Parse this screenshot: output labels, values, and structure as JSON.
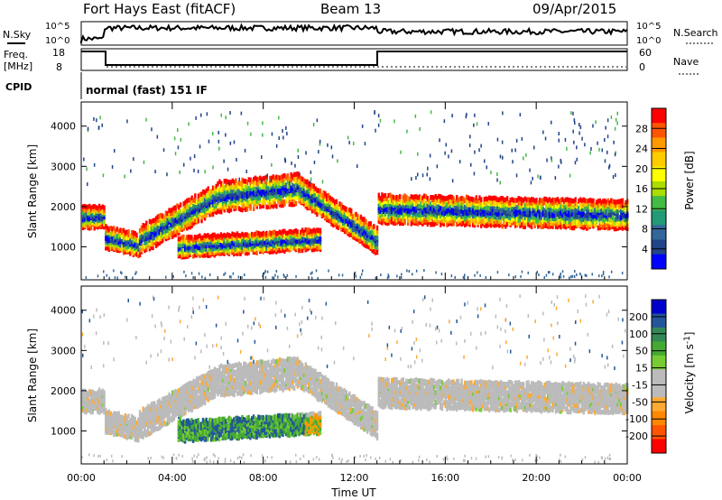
{
  "header": {
    "station": "Fort Hays East (fitACF)",
    "beam": "Beam 13",
    "date": "09/Apr/2015"
  },
  "strips": {
    "nsky_label": "N.Sky",
    "nsky_top": "10^5",
    "nsky_bot": "10^0",
    "nsearch_label": "N.Search",
    "nsearch_top": "10^5",
    "nsearch_bot": "10^0",
    "freq_label": "Freq.",
    "freq_unit": "[MHz]",
    "freq_top": "18",
    "freq_bot": "8",
    "nave_label": "Nave",
    "nave_top": "60",
    "nave_bot": "0",
    "cpid_label": "CPID",
    "cpid_text": "normal (fast) 151 IF"
  },
  "chart_data": [
    {
      "type": "heatmap",
      "name": "power-panel",
      "ylabel": "Slant Range [km]",
      "yticks": [
        "1000",
        "2000",
        "3000",
        "4000"
      ],
      "colorbar_label": "Power [dB]",
      "colorbar_ticks": [
        "28",
        "24",
        "20",
        "16",
        "12",
        "8",
        "4"
      ],
      "colorbar_colors": [
        "#ff0000",
        "#ff5500",
        "#ff9900",
        "#ffcc00",
        "#ffff00",
        "#aadd00",
        "#44bb44",
        "#229977",
        "#336699",
        "#224488",
        "#0000ff"
      ],
      "x_range_hours": [
        0,
        24
      ],
      "y_range_km": [
        180,
        4600
      ],
      "echo_bands": [
        {
          "t_start": 0.0,
          "t_end": 1.0,
          "center_start": 1800,
          "center_end": 1800,
          "width": 500
        },
        {
          "t_start": 1.0,
          "t_end": 2.5,
          "center_start": 1300,
          "center_end": 1100,
          "width": 500
        },
        {
          "t_start": 2.5,
          "t_end": 6.0,
          "center_start": 1200,
          "center_end": 2300,
          "width": 650
        },
        {
          "t_start": 6.0,
          "t_end": 9.5,
          "center_start": 2300,
          "center_end": 2500,
          "width": 700
        },
        {
          "t_start": 9.5,
          "t_end": 13.0,
          "center_start": 2500,
          "center_end": 1200,
          "width": 600
        },
        {
          "t_start": 4.2,
          "t_end": 10.5,
          "center_start": 1050,
          "center_end": 1250,
          "width": 450
        },
        {
          "t_start": 13.0,
          "t_end": 24.0,
          "center_start": 2000,
          "center_end": 1850,
          "width": 650
        }
      ]
    },
    {
      "type": "heatmap",
      "name": "velocity-panel",
      "ylabel": "Slant Range [km]",
      "xlabel": "Time UT",
      "yticks": [
        "1000",
        "2000",
        "3000",
        "4000"
      ],
      "xticks": [
        "00:00",
        "04:00",
        "08:00",
        "12:00",
        "16:00",
        "20:00",
        "00:00"
      ],
      "colorbar_label": "Velocity [m s^-1]",
      "colorbar_ticks": [
        "200",
        "100",
        "50",
        "15",
        "-15",
        "-50",
        "-100",
        "-200"
      ],
      "colorbar_colors": [
        "#0000cc",
        "#225599",
        "#338855",
        "#44aa33",
        "#77cc33",
        "#bbbbbb",
        "#bbbbbb",
        "#ffaa33",
        "#ff8800",
        "#ff5500",
        "#ff0000"
      ],
      "x_range_hours": [
        0,
        24
      ],
      "y_range_km": [
        180,
        4600
      ]
    }
  ]
}
